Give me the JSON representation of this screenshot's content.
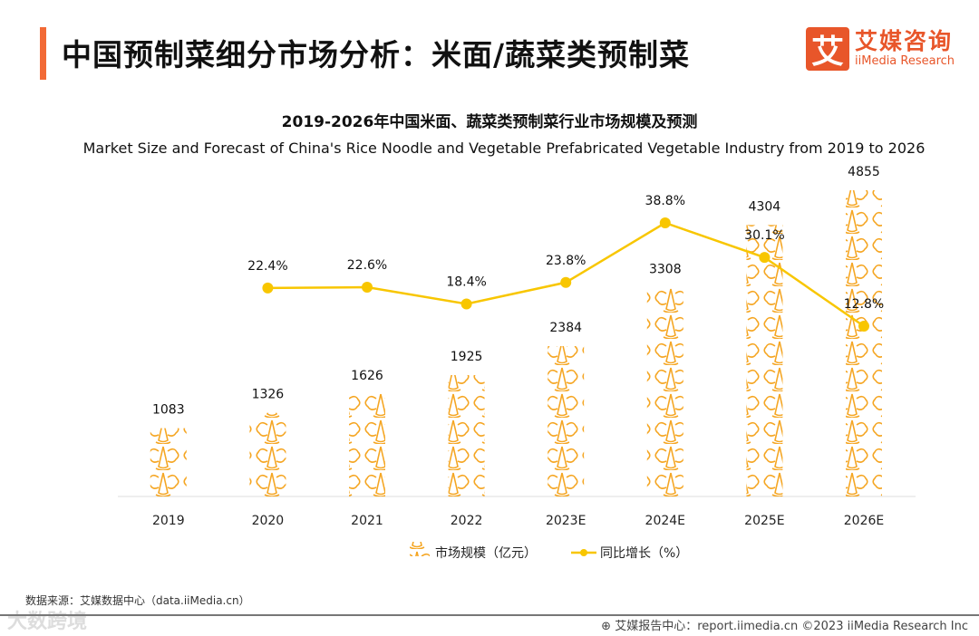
{
  "header": {
    "title": "中国预制菜细分市场分析：米面/蔬菜类预制菜",
    "logo_mark": "艾",
    "logo_cn": "艾媒咨询",
    "logo_en": "iiMedia Research"
  },
  "chart_data": {
    "type": "bar",
    "title": "2019-2026年中国米面、蔬菜类预制菜行业市场规模及预测",
    "subtitle": "Market Size and Forecast of China's Rice Noodle and Vegetable Prefabricated Vegetable Industry from 2019 to 2026",
    "categories": [
      "2019",
      "2020",
      "2021",
      "2022",
      "2023E",
      "2024E",
      "2025E",
      "2026E"
    ],
    "series": [
      {
        "name": "市场规模（亿元）",
        "type": "pictorial-bar",
        "values": [
          1083,
          1326,
          1626,
          1925,
          2384,
          3308,
          4304,
          4855
        ],
        "labels": [
          "1083",
          "1326",
          "1626",
          "1925",
          "2384",
          "3308",
          "4304",
          "4855"
        ]
      },
      {
        "name": "同比增长（%）",
        "type": "line",
        "values": [
          null,
          22.4,
          22.6,
          18.4,
          23.8,
          38.8,
          30.1,
          12.8
        ],
        "labels": [
          "",
          "22.4%",
          "22.6%",
          "18.4%",
          "23.8%",
          "38.8%",
          "30.1%",
          "12.8%"
        ]
      }
    ],
    "legend": "bottom-center",
    "colors": {
      "bar": "#f5a623",
      "line": "#f8c600"
    },
    "grid": false
  },
  "footer": {
    "source": "数据来源：艾媒数据中心（data.iiMedia.cn）",
    "report": "艾媒报告中心：report.iimedia.cn   ©2023  iiMedia Research  Inc",
    "watermark": "大数跨境"
  }
}
